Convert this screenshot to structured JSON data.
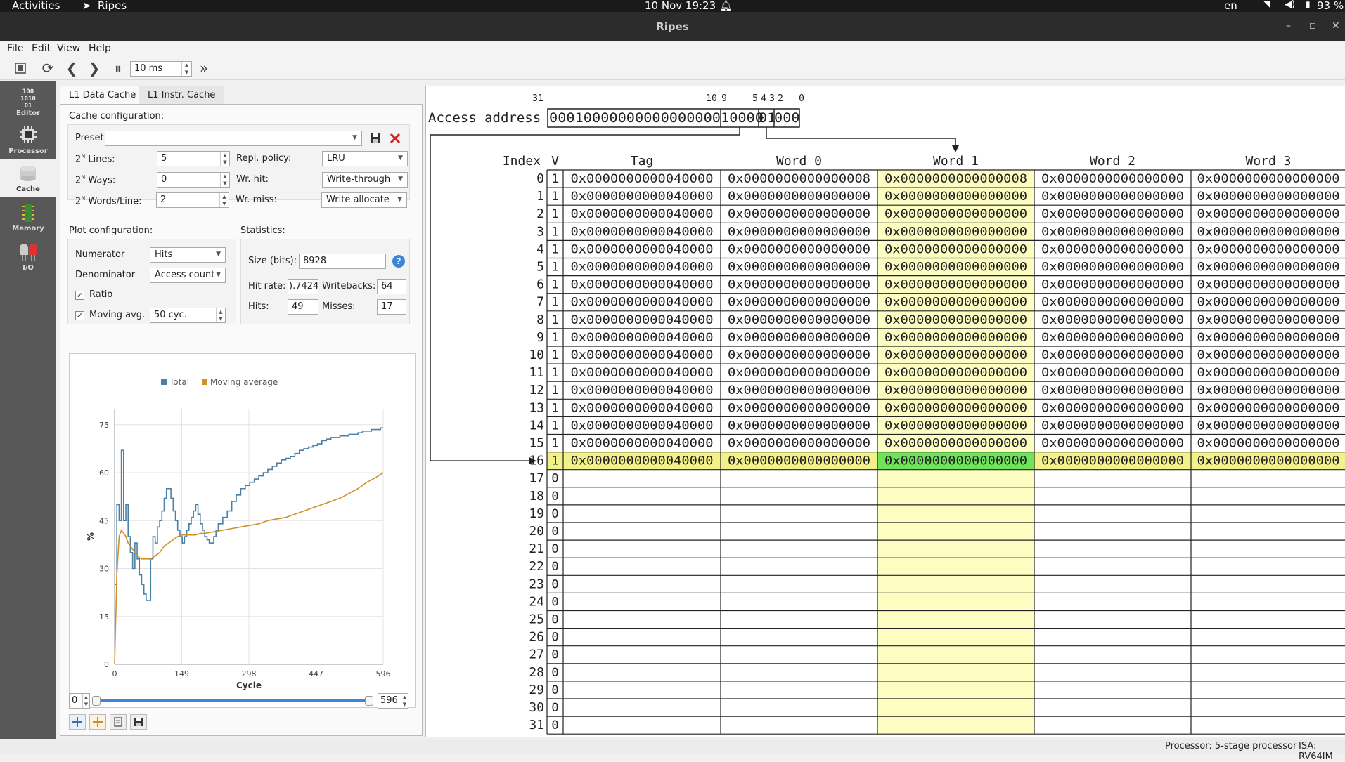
{
  "topbar": {
    "activities": "Activities",
    "app": "Ripes",
    "clock": "10 Nov  19:23",
    "lang": "en",
    "battery": "93 %"
  },
  "window": {
    "title": "Ripes",
    "minimize": "–",
    "maximize": "◻",
    "close": "✕"
  },
  "menu": [
    "File",
    "Edit",
    "View",
    "Help"
  ],
  "toolbar": {
    "speed": "10 ms"
  },
  "sidebar": [
    {
      "label": "Editor",
      "icon": "editor-icon"
    },
    {
      "label": "Processor",
      "icon": "processor-icon"
    },
    {
      "label": "Cache",
      "icon": "cache-icon"
    },
    {
      "label": "Memory",
      "icon": "memory-icon"
    },
    {
      "label": "I/O",
      "icon": "io-icon"
    }
  ],
  "tabs": [
    "L1 Data Cache",
    "L1 Instr. Cache"
  ],
  "cache_config": {
    "heading": "Cache configuration:",
    "preset_label": "Preset:",
    "preset_value": "",
    "lines_label": "Lines:",
    "lines_value": "5",
    "ways_label": "Ways:",
    "ways_value": "0",
    "words_label": "Words/Line:",
    "words_value": "2",
    "pow_base": "2",
    "pow_exp": "N",
    "repl_label": "Repl. policy:",
    "repl_value": "LRU",
    "wrhit_label": "Wr. hit:",
    "wrhit_value": "Write-through",
    "wrmiss_label": "Wr. miss:",
    "wrmiss_value": "Write allocate"
  },
  "plot_config": {
    "heading": "Plot configuration:",
    "numerator_label": "Numerator",
    "numerator_value": "Hits",
    "denominator_label": "Denominator",
    "denominator_value": "Access count",
    "ratio_label": "Ratio",
    "movavg_label": "Moving avg.",
    "movavg_value": "50 cyc."
  },
  "statistics": {
    "heading": "Statistics:",
    "size_label": "Size (bits):",
    "size_value": "8928",
    "hitrate_label": "Hit rate:",
    "hitrate_value": ").7424",
    "writebacks_label": "Writebacks:",
    "writebacks_value": "64",
    "hits_label": "Hits:",
    "hits_value": "49",
    "misses_label": "Misses:",
    "misses_value": "17"
  },
  "chart_data": {
    "type": "line",
    "title": "",
    "xlabel": "Cycle",
    "ylabel": "%",
    "xlim": [
      0,
      596
    ],
    "ylim": [
      0,
      80
    ],
    "xticks": [
      "0",
      "149",
      "298",
      "447",
      "596"
    ],
    "yticks": [
      "0",
      "15",
      "30",
      "45",
      "60",
      "75"
    ],
    "legend_placement": "top",
    "series": [
      {
        "name": "Total",
        "color": "#4a7fa6",
        "x": [
          0,
          5,
          10,
          15,
          20,
          25,
          30,
          35,
          40,
          45,
          50,
          55,
          60,
          65,
          70,
          75,
          80,
          85,
          90,
          95,
          100,
          105,
          110,
          115,
          120,
          125,
          130,
          135,
          140,
          145,
          150,
          155,
          160,
          165,
          170,
          175,
          180,
          185,
          190,
          195,
          200,
          205,
          210,
          215,
          220,
          225,
          230,
          240,
          250,
          260,
          270,
          280,
          290,
          300,
          310,
          320,
          330,
          340,
          350,
          360,
          370,
          380,
          390,
          400,
          410,
          420,
          430,
          440,
          450,
          460,
          470,
          480,
          490,
          500,
          510,
          520,
          530,
          540,
          550,
          560,
          570,
          580,
          590,
          596
        ],
        "y": [
          25,
          50,
          45,
          67,
          45,
          50,
          40,
          35,
          30,
          38,
          33,
          28,
          25,
          22,
          20,
          20,
          33,
          40,
          38,
          43,
          45,
          48,
          52,
          55,
          55,
          52,
          48,
          45,
          42,
          40,
          38,
          40,
          42,
          44,
          46,
          48,
          50,
          47,
          44,
          42,
          40,
          39,
          38,
          38,
          40,
          42,
          44,
          46,
          48,
          51,
          53,
          55,
          56,
          57,
          58,
          59,
          60,
          61,
          62,
          63,
          64,
          64.5,
          65,
          66,
          67,
          67.5,
          68,
          68.5,
          69,
          70,
          70.5,
          71,
          71,
          71.5,
          71.5,
          72,
          72,
          72.5,
          73,
          73,
          73.5,
          73.5,
          74,
          74
        ]
      },
      {
        "name": "Moving average",
        "color": "#d18f2a",
        "x": [
          0,
          5,
          10,
          15,
          20,
          25,
          30,
          40,
          50,
          60,
          70,
          80,
          90,
          100,
          110,
          120,
          130,
          140,
          150,
          160,
          170,
          180,
          190,
          200,
          220,
          240,
          260,
          280,
          300,
          320,
          340,
          360,
          380,
          400,
          420,
          440,
          460,
          480,
          500,
          520,
          540,
          560,
          580,
          596
        ],
        "y": [
          0,
          28,
          40,
          42,
          41,
          40,
          38,
          36,
          34,
          33,
          33,
          33,
          34,
          35,
          37,
          38,
          39,
          40,
          40.5,
          40.5,
          40.5,
          40.5,
          41,
          41,
          41.5,
          42,
          42.5,
          43,
          43.5,
          44,
          45,
          45.5,
          46,
          47,
          48,
          49,
          50,
          51,
          52,
          53.5,
          55,
          57,
          58.5,
          60
        ]
      }
    ]
  },
  "slider": {
    "min": "0",
    "max": "596"
  },
  "access": {
    "label": "Access address",
    "bits": "0001000000000000000000100000100000",
    "bit_segments": [
      "00010000000000000000",
      "10000",
      "01",
      "000"
    ],
    "bit_positions": [
      {
        "t": "31",
        "c": 764
      },
      {
        "t": "10",
        "c": 1011
      },
      {
        "t": "9",
        "c": 1029
      },
      {
        "t": "5",
        "c": 1073
      },
      {
        "t": "4",
        "c": 1085
      },
      {
        "t": "3",
        "c": 1097
      },
      {
        "t": "2",
        "c": 1109
      },
      {
        "t": "0",
        "c": 1139
      }
    ]
  },
  "cache_table": {
    "headers": {
      "index": "Index",
      "valid": "V",
      "tag": "Tag",
      "word0": "Word 0",
      "word1": "Word 1",
      "word2": "Word 2",
      "word3": "Word 3"
    },
    "highlight_index": 16,
    "rows": [
      {
        "index": "0",
        "v": "1",
        "tag": "0x0000000000040000",
        "w0": "0x0000000000000008",
        "w1": "0x0000000000000008",
        "w2": "0x0000000000000000",
        "w3": "0x0000000000000000"
      },
      {
        "index": "1",
        "v": "1",
        "tag": "0x0000000000040000",
        "w0": "0x0000000000000000",
        "w1": "0x0000000000000000",
        "w2": "0x0000000000000000",
        "w3": "0x0000000000000000"
      },
      {
        "index": "2",
        "v": "1",
        "tag": "0x0000000000040000",
        "w0": "0x0000000000000000",
        "w1": "0x0000000000000000",
        "w2": "0x0000000000000000",
        "w3": "0x0000000000000000"
      },
      {
        "index": "3",
        "v": "1",
        "tag": "0x0000000000040000",
        "w0": "0x0000000000000000",
        "w1": "0x0000000000000000",
        "w2": "0x0000000000000000",
        "w3": "0x0000000000000000"
      },
      {
        "index": "4",
        "v": "1",
        "tag": "0x0000000000040000",
        "w0": "0x0000000000000000",
        "w1": "0x0000000000000000",
        "w2": "0x0000000000000000",
        "w3": "0x0000000000000000"
      },
      {
        "index": "5",
        "v": "1",
        "tag": "0x0000000000040000",
        "w0": "0x0000000000000000",
        "w1": "0x0000000000000000",
        "w2": "0x0000000000000000",
        "w3": "0x0000000000000000"
      },
      {
        "index": "6",
        "v": "1",
        "tag": "0x0000000000040000",
        "w0": "0x0000000000000000",
        "w1": "0x0000000000000000",
        "w2": "0x0000000000000000",
        "w3": "0x0000000000000000"
      },
      {
        "index": "7",
        "v": "1",
        "tag": "0x0000000000040000",
        "w0": "0x0000000000000000",
        "w1": "0x0000000000000000",
        "w2": "0x0000000000000000",
        "w3": "0x0000000000000000"
      },
      {
        "index": "8",
        "v": "1",
        "tag": "0x0000000000040000",
        "w0": "0x0000000000000000",
        "w1": "0x0000000000000000",
        "w2": "0x0000000000000000",
        "w3": "0x0000000000000000"
      },
      {
        "index": "9",
        "v": "1",
        "tag": "0x0000000000040000",
        "w0": "0x0000000000000000",
        "w1": "0x0000000000000000",
        "w2": "0x0000000000000000",
        "w3": "0x0000000000000000"
      },
      {
        "index": "10",
        "v": "1",
        "tag": "0x0000000000040000",
        "w0": "0x0000000000000000",
        "w1": "0x0000000000000000",
        "w2": "0x0000000000000000",
        "w3": "0x0000000000000000"
      },
      {
        "index": "11",
        "v": "1",
        "tag": "0x0000000000040000",
        "w0": "0x0000000000000000",
        "w1": "0x0000000000000000",
        "w2": "0x0000000000000000",
        "w3": "0x0000000000000000"
      },
      {
        "index": "12",
        "v": "1",
        "tag": "0x0000000000040000",
        "w0": "0x0000000000000000",
        "w1": "0x0000000000000000",
        "w2": "0x0000000000000000",
        "w3": "0x0000000000000000"
      },
      {
        "index": "13",
        "v": "1",
        "tag": "0x0000000000040000",
        "w0": "0x0000000000000000",
        "w1": "0x0000000000000000",
        "w2": "0x0000000000000000",
        "w3": "0x0000000000000000"
      },
      {
        "index": "14",
        "v": "1",
        "tag": "0x0000000000040000",
        "w0": "0x0000000000000000",
        "w1": "0x0000000000000000",
        "w2": "0x0000000000000000",
        "w3": "0x0000000000000000"
      },
      {
        "index": "15",
        "v": "1",
        "tag": "0x0000000000040000",
        "w0": "0x0000000000000000",
        "w1": "0x0000000000000000",
        "w2": "0x0000000000000000",
        "w3": "0x0000000000000000"
      },
      {
        "index": "16",
        "v": "1",
        "tag": "0x0000000000040000",
        "w0": "0x0000000000000000",
        "w1": "0x0000000000000000",
        "w2": "0x0000000000000000",
        "w3": "0x0000000000000000"
      },
      {
        "index": "17",
        "v": "0",
        "tag": "",
        "w0": "",
        "w1": "",
        "w2": "",
        "w3": ""
      },
      {
        "index": "18",
        "v": "0",
        "tag": "",
        "w0": "",
        "w1": "",
        "w2": "",
        "w3": ""
      },
      {
        "index": "19",
        "v": "0",
        "tag": "",
        "w0": "",
        "w1": "",
        "w2": "",
        "w3": ""
      },
      {
        "index": "20",
        "v": "0",
        "tag": "",
        "w0": "",
        "w1": "",
        "w2": "",
        "w3": ""
      },
      {
        "index": "21",
        "v": "0",
        "tag": "",
        "w0": "",
        "w1": "",
        "w2": "",
        "w3": ""
      },
      {
        "index": "22",
        "v": "0",
        "tag": "",
        "w0": "",
        "w1": "",
        "w2": "",
        "w3": ""
      },
      {
        "index": "23",
        "v": "0",
        "tag": "",
        "w0": "",
        "w1": "",
        "w2": "",
        "w3": ""
      },
      {
        "index": "24",
        "v": "0",
        "tag": "",
        "w0": "",
        "w1": "",
        "w2": "",
        "w3": ""
      },
      {
        "index": "25",
        "v": "0",
        "tag": "",
        "w0": "",
        "w1": "",
        "w2": "",
        "w3": ""
      },
      {
        "index": "26",
        "v": "0",
        "tag": "",
        "w0": "",
        "w1": "",
        "w2": "",
        "w3": ""
      },
      {
        "index": "27",
        "v": "0",
        "tag": "",
        "w0": "",
        "w1": "",
        "w2": "",
        "w3": ""
      },
      {
        "index": "28",
        "v": "0",
        "tag": "",
        "w0": "",
        "w1": "",
        "w2": "",
        "w3": ""
      },
      {
        "index": "29",
        "v": "0",
        "tag": "",
        "w0": "",
        "w1": "",
        "w2": "",
        "w3": ""
      },
      {
        "index": "30",
        "v": "0",
        "tag": "",
        "w0": "",
        "w1": "",
        "w2": "",
        "w3": ""
      },
      {
        "index": "31",
        "v": "0",
        "tag": "",
        "w0": "",
        "w1": "",
        "w2": "",
        "w3": ""
      }
    ]
  },
  "status": {
    "processor": "Processor: 5-stage processor",
    "isa": "ISA: RV64IM"
  },
  "colors": {
    "highlight_column": "#fdfdc2",
    "highlight_row": "#f2f288",
    "highlight_cell": "#6fe35a",
    "sidebar": "#585858"
  }
}
